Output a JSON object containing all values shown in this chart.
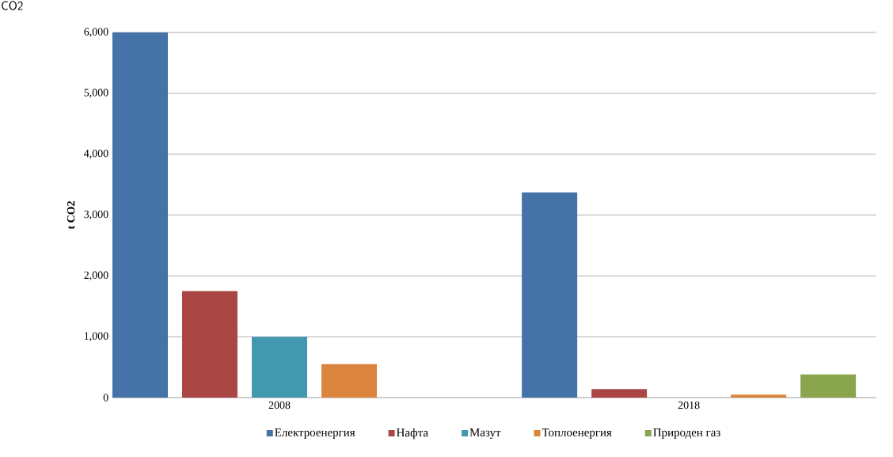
{
  "chart_data": {
    "type": "bar",
    "ylabel": "t CO2",
    "annotations": [
      "CO2"
    ],
    "categories": [
      "2008",
      "2018"
    ],
    "series": [
      {
        "name": "Електроенергия",
        "color": "#4572a7",
        "values": [
          6000,
          3370
        ]
      },
      {
        "name": "Нафта",
        "color": "#aa4643",
        "values": [
          1750,
          140
        ]
      },
      {
        "name": "Мазут",
        "color": "#4198af",
        "values": [
          1000,
          0
        ]
      },
      {
        "name": "Топлоенергия",
        "color": "#db843d",
        "values": [
          550,
          50
        ]
      },
      {
        "name": "Природен газ",
        "color": "#89a54e",
        "values": [
          0,
          380
        ]
      }
    ],
    "ylim": [
      0,
      6000
    ],
    "yticks": [
      0,
      {
        "value": 1000,
        "label": "1,000"
      },
      {
        "value": 2000,
        "label": "2,000"
      },
      {
        "value": 3000,
        "label": "3,000"
      },
      {
        "value": 4000,
        "label": "4,000"
      },
      {
        "value": 5000,
        "label": "5,000"
      },
      {
        "value": 6000,
        "label": "6,000"
      }
    ],
    "grid": "y",
    "legend": "bottom"
  }
}
